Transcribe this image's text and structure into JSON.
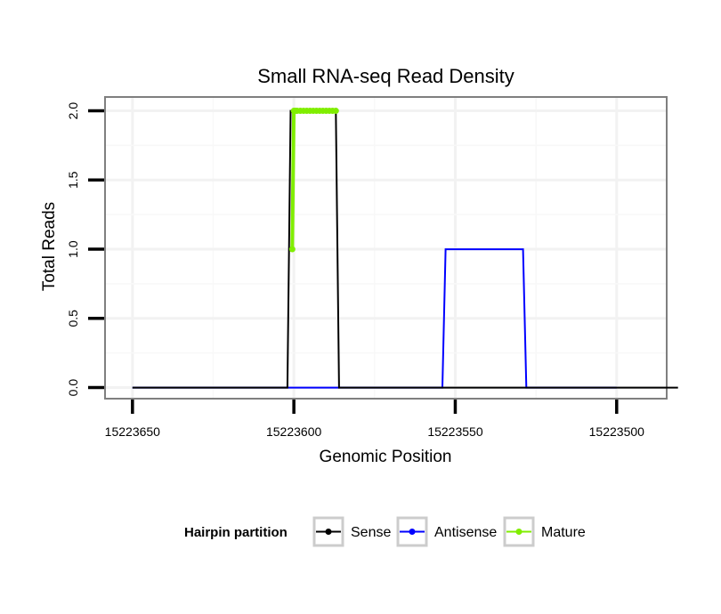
{
  "chart_data": {
    "type": "line",
    "title": "Small RNA-seq Read Density",
    "xlabel": "Genomic Position",
    "ylabel": "Total Reads",
    "xlim": [
      15223658.5,
      15223484.5
    ],
    "x_reversed": true,
    "ylim": [
      -0.08,
      2.1
    ],
    "xticks": [
      15223650,
      15223600,
      15223550,
      15223500
    ],
    "xtick_labels": [
      "15223650",
      "15223600",
      "15223550",
      "15223500"
    ],
    "yticks": [
      0.0,
      0.5,
      1.0,
      1.5,
      2.0
    ],
    "ytick_labels": [
      "0.0",
      "0.5",
      "1.0",
      "1.5",
      "2.0"
    ],
    "grid": true,
    "legend": {
      "title": "Hairpin partition",
      "position": "bottom",
      "items": [
        {
          "label": "Sense",
          "color": "#000000"
        },
        {
          "label": "Antisense",
          "color": "#0000ff"
        },
        {
          "label": "Mature",
          "color": "#80ee00"
        }
      ]
    },
    "series": [
      {
        "name": "Antisense",
        "color": "#0000ff",
        "x": [
          15223650,
          15223601,
          15223600,
          15223599,
          15223585,
          15223584,
          15223554,
          15223553,
          15223529,
          15223528,
          15223500
        ],
        "y": [
          0,
          0,
          0,
          0,
          0,
          0,
          0,
          1,
          1,
          0,
          0
        ]
      },
      {
        "name": "Sense",
        "color": "#000000",
        "x": [
          15223650,
          15223620,
          15223602,
          15223601,
          15223587,
          15223586,
          15223560,
          15223520,
          15223481
        ],
        "y": [
          0,
          0,
          0,
          2,
          2,
          0,
          0,
          0,
          0
        ]
      },
      {
        "name": "Mature",
        "color": "#80ee00",
        "x": [
          15223600.5,
          15223600,
          15223599.5,
          15223599,
          15223598,
          15223597,
          15223596,
          15223595,
          15223594,
          15223593,
          15223592,
          15223591,
          15223590,
          15223589,
          15223588,
          15223587
        ],
        "y": [
          1,
          2,
          2,
          2,
          2,
          2,
          2,
          2,
          2,
          2,
          2,
          2,
          2,
          2,
          2,
          2
        ]
      }
    ]
  }
}
